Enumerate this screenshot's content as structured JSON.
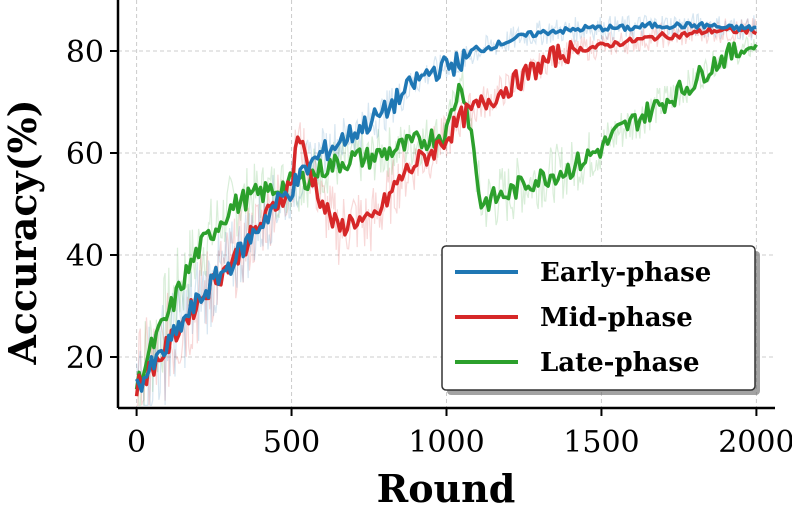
{
  "chart_data": {
    "type": "line",
    "title": "",
    "xlabel": "Round",
    "ylabel": "Accuracy(%)",
    "xlim": [
      -60,
      2060
    ],
    "ylim": [
      10,
      90
    ],
    "xticks": [
      0,
      500,
      1000,
      1500,
      2000
    ],
    "xtick_labels": [
      "0",
      "500",
      "1000",
      "1500",
      "2000"
    ],
    "yticks": [
      20,
      40,
      60,
      80
    ],
    "ytick_labels": [
      "20",
      "40",
      "60",
      "80"
    ],
    "grid": true,
    "legend": "bottom-right",
    "series": [
      {
        "name": "Early-phase",
        "color": "#1f77b4",
        "x": [
          0,
          50,
          100,
          150,
          200,
          250,
          300,
          350,
          400,
          450,
          500,
          550,
          600,
          650,
          700,
          750,
          800,
          850,
          900,
          950,
          1000,
          1050,
          1100,
          1150,
          1200,
          1250,
          1300,
          1350,
          1400,
          1450,
          1500,
          1550,
          1600,
          1650,
          1700,
          1750,
          1800,
          1850,
          1900,
          1950,
          2000
        ],
        "values": [
          14,
          18,
          22,
          27,
          31,
          35,
          38,
          42,
          46,
          50,
          53,
          57,
          60,
          62,
          64,
          66,
          68,
          71,
          74,
          76,
          77,
          78,
          80,
          81,
          82,
          83,
          83.5,
          84,
          84,
          84.5,
          84.5,
          84.5,
          84.5,
          85,
          85,
          85,
          85,
          85,
          84.5,
          84.5,
          84.5
        ]
      },
      {
        "name": "Mid-phase",
        "color": "#d62728",
        "x": [
          0,
          50,
          100,
          150,
          200,
          250,
          300,
          350,
          400,
          450,
          500,
          520,
          550,
          600,
          650,
          700,
          750,
          800,
          850,
          900,
          950,
          1000,
          1050,
          1100,
          1150,
          1200,
          1250,
          1300,
          1350,
          1400,
          1450,
          1500,
          1550,
          1600,
          1650,
          1700,
          1750,
          1800,
          1850,
          1900,
          1950,
          2000
        ],
        "values": [
          14,
          18,
          22,
          27,
          31,
          35,
          38,
          42,
          46,
          50,
          54,
          64,
          58,
          50,
          45,
          47,
          46,
          50,
          55,
          58,
          60,
          63,
          67,
          69,
          71,
          73,
          75,
          77,
          79,
          80,
          80.5,
          81,
          81.5,
          82,
          82.5,
          83,
          83,
          83.5,
          84,
          84,
          84,
          84
        ]
      },
      {
        "name": "Late-phase",
        "color": "#2ca02c",
        "x": [
          0,
          50,
          100,
          150,
          200,
          250,
          300,
          350,
          400,
          450,
          500,
          550,
          600,
          650,
          700,
          750,
          800,
          850,
          900,
          950,
          1000,
          1030,
          1050,
          1080,
          1110,
          1150,
          1200,
          1250,
          1300,
          1350,
          1400,
          1450,
          1500,
          1550,
          1600,
          1650,
          1700,
          1750,
          1800,
          1850,
          1900,
          1950,
          2000
        ],
        "values": [
          14,
          22,
          28,
          35,
          41,
          45,
          49,
          51,
          52,
          53,
          54,
          55,
          57,
          58,
          59,
          59,
          60,
          61,
          62,
          63,
          64,
          71,
          74,
          64,
          50,
          51,
          52,
          54,
          55,
          56,
          57,
          59,
          61,
          64,
          66,
          68,
          70,
          72,
          74,
          77,
          79,
          80,
          81
        ]
      }
    ]
  }
}
